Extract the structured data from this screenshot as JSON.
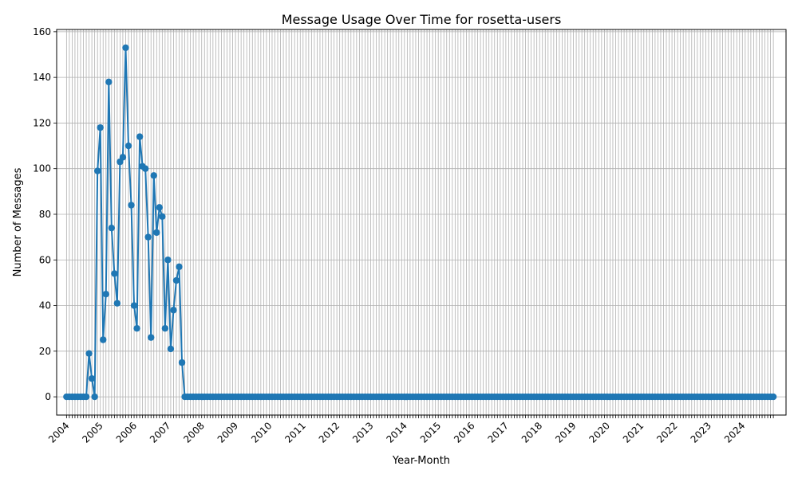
{
  "chart_data": {
    "type": "line",
    "title": "Message Usage Over Time for rosetta-users",
    "xlabel": "Year-Month",
    "ylabel": "Number of Messages",
    "x_start": "2004-01",
    "x_end": "2024-12",
    "xlim_months": [
      -3.5,
      255.5
    ],
    "ylim": [
      -8,
      161
    ],
    "y_ticks": [
      0,
      20,
      40,
      60,
      80,
      100,
      120,
      140,
      160
    ],
    "x_tick_labels": [
      "2004",
      "2005",
      "2006",
      "2007",
      "2008",
      "2009",
      "2010",
      "2011",
      "2012",
      "2013",
      "2014",
      "2015",
      "2016",
      "2017",
      "2018",
      "2019",
      "2020",
      "2021",
      "2022",
      "2023",
      "2024"
    ],
    "grid": true,
    "line_color": "#1f77b4",
    "series": [
      {
        "name": "",
        "nonzero_values": [
          {
            "x": "2004-09",
            "y": 19
          },
          {
            "x": "2004-10",
            "y": 8
          },
          {
            "x": "2004-11",
            "y": 0
          },
          {
            "x": "2004-12",
            "y": 99
          },
          {
            "x": "2005-01",
            "y": 118
          },
          {
            "x": "2005-02",
            "y": 25
          },
          {
            "x": "2005-03",
            "y": 45
          },
          {
            "x": "2005-04",
            "y": 138
          },
          {
            "x": "2005-05",
            "y": 74
          },
          {
            "x": "2005-06",
            "y": 54
          },
          {
            "x": "2005-07",
            "y": 41
          },
          {
            "x": "2005-08",
            "y": 103
          },
          {
            "x": "2005-09",
            "y": 105
          },
          {
            "x": "2005-10",
            "y": 153
          },
          {
            "x": "2005-11",
            "y": 110
          },
          {
            "x": "2005-12",
            "y": 84
          },
          {
            "x": "2006-01",
            "y": 40
          },
          {
            "x": "2006-02",
            "y": 30
          },
          {
            "x": "2006-03",
            "y": 114
          },
          {
            "x": "2006-04",
            "y": 101
          },
          {
            "x": "2006-05",
            "y": 100
          },
          {
            "x": "2006-06",
            "y": 70
          },
          {
            "x": "2006-07",
            "y": 26
          },
          {
            "x": "2006-08",
            "y": 97
          },
          {
            "x": "2006-09",
            "y": 72
          },
          {
            "x": "2006-10",
            "y": 83
          },
          {
            "x": "2006-11",
            "y": 79
          },
          {
            "x": "2006-12",
            "y": 30
          },
          {
            "x": "2007-01",
            "y": 60
          },
          {
            "x": "2007-02",
            "y": 21
          },
          {
            "x": "2007-03",
            "y": 38
          },
          {
            "x": "2007-04",
            "y": 51
          },
          {
            "x": "2007-05",
            "y": 57
          },
          {
            "x": "2007-06",
            "y": 15
          }
        ],
        "default_value": 0
      }
    ]
  }
}
